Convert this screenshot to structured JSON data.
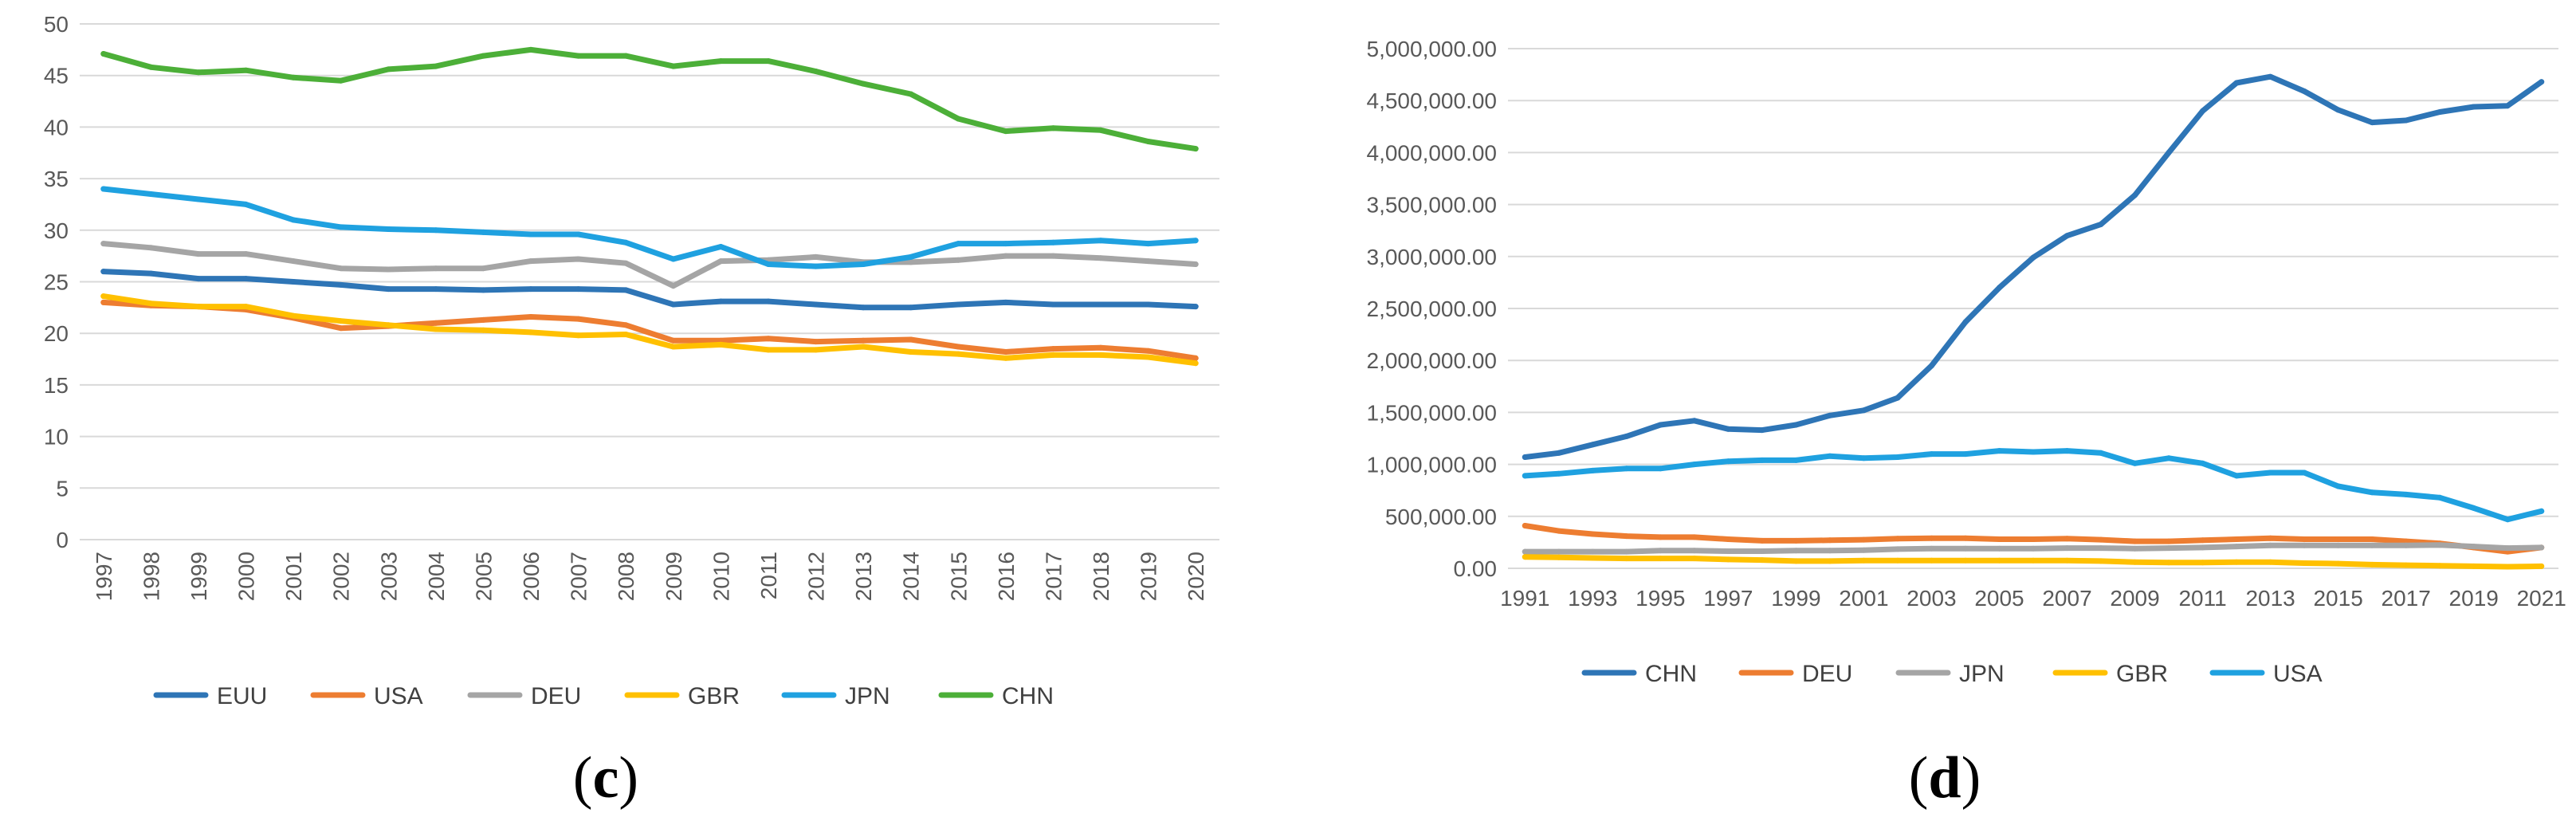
{
  "panels": [
    {
      "label_open": "(",
      "label_letter": "c",
      "label_close": ")",
      "chart_data": {
        "type": "line",
        "title": "",
        "xlabel": "",
        "ylabel": "",
        "ylim": [
          0,
          50
        ],
        "yticks": [
          0,
          5,
          10,
          15,
          20,
          25,
          30,
          35,
          40,
          45,
          50
        ],
        "ytick_labels": [
          "0",
          "5",
          "10",
          "15",
          "20",
          "25",
          "30",
          "35",
          "40",
          "45",
          "50"
        ],
        "grid": true,
        "legend_position": "bottom",
        "x": [
          "1997",
          "1998",
          "1999",
          "2000",
          "2001",
          "2002",
          "2003",
          "2004",
          "2005",
          "2006",
          "2007",
          "2008",
          "2009",
          "2010",
          "2011",
          "2012",
          "2013",
          "2014",
          "2015",
          "2016",
          "2017",
          "2018",
          "2019",
          "2020"
        ],
        "series": [
          {
            "name": "EUU",
            "color": "#2E75B6",
            "values": [
              26.0,
              25.8,
              25.3,
              25.3,
              25.0,
              24.7,
              24.3,
              24.3,
              24.2,
              24.3,
              24.3,
              24.2,
              22.8,
              23.1,
              23.1,
              22.8,
              22.5,
              22.5,
              22.8,
              23.0,
              22.8,
              22.8,
              22.8,
              22.6
            ]
          },
          {
            "name": "USA",
            "color": "#ED7D31",
            "values": [
              23.0,
              22.7,
              22.6,
              22.3,
              21.5,
              20.5,
              20.7,
              21.0,
              21.3,
              21.6,
              21.4,
              20.8,
              19.3,
              19.3,
              19.5,
              19.2,
              19.3,
              19.4,
              18.7,
              18.2,
              18.5,
              18.6,
              18.3,
              17.6
            ]
          },
          {
            "name": "DEU",
            "color": "#A5A5A5",
            "values": [
              28.7,
              28.3,
              27.7,
              27.7,
              27.0,
              26.3,
              26.2,
              26.3,
              26.3,
              27.0,
              27.2,
              26.8,
              24.6,
              27.0,
              27.1,
              27.4,
              26.9,
              26.9,
              27.1,
              27.5,
              27.5,
              27.3,
              27.0,
              26.7
            ]
          },
          {
            "name": "GBR",
            "color": "#FFC000",
            "values": [
              23.6,
              22.9,
              22.6,
              22.6,
              21.7,
              21.2,
              20.8,
              20.4,
              20.3,
              20.1,
              19.8,
              19.9,
              18.7,
              18.9,
              18.4,
              18.4,
              18.7,
              18.2,
              18.0,
              17.6,
              17.9,
              17.9,
              17.7,
              17.1
            ]
          },
          {
            "name": "JPN",
            "color": "#1FA1E0",
            "values": [
              34.0,
              33.5,
              33.0,
              32.5,
              31.0,
              30.3,
              30.1,
              30.0,
              29.8,
              29.6,
              29.6,
              28.8,
              27.2,
              28.4,
              26.7,
              26.5,
              26.7,
              27.4,
              28.7,
              28.7,
              28.8,
              29.0,
              28.7,
              29.0
            ]
          },
          {
            "name": "CHN",
            "color": "#4CAF38",
            "values": [
              47.1,
              45.8,
              45.3,
              45.5,
              44.8,
              44.5,
              45.6,
              45.9,
              46.9,
              47.5,
              46.9,
              46.9,
              45.9,
              46.4,
              46.4,
              45.4,
              44.2,
              43.2,
              40.8,
              39.6,
              39.9,
              39.7,
              38.6,
              37.9
            ]
          }
        ]
      }
    },
    {
      "label_open": "(",
      "label_letter": "d",
      "label_close": ")",
      "chart_data": {
        "type": "line",
        "title": "",
        "xlabel": "",
        "ylabel": "",
        "ylim": [
          0,
          5000000
        ],
        "yticks": [
          0,
          500000,
          1000000,
          1500000,
          2000000,
          2500000,
          3000000,
          3500000,
          4000000,
          4500000,
          5000000
        ],
        "ytick_labels": [
          "0.00",
          "500,000.00",
          "1,000,000.00",
          "1,500,000.00",
          "2,000,000.00",
          "2,500,000.00",
          "3,000,000.00",
          "3,500,000.00",
          "4,000,000.00",
          "4,500,000.00",
          "5,000,000.00"
        ],
        "xtick_labels": [
          "1991",
          "1993",
          "1995",
          "1997",
          "1999",
          "2001",
          "2003",
          "2005",
          "2007",
          "2009",
          "2011",
          "2013",
          "2015",
          "2017",
          "2019",
          "2021"
        ],
        "grid": true,
        "legend_position": "bottom",
        "x": [
          "1991",
          "1992",
          "1993",
          "1994",
          "1995",
          "1996",
          "1997",
          "1998",
          "1999",
          "2000",
          "2001",
          "2002",
          "2003",
          "2004",
          "2005",
          "2006",
          "2007",
          "2008",
          "2009",
          "2010",
          "2011",
          "2012",
          "2013",
          "2014",
          "2015",
          "2016",
          "2017",
          "2018",
          "2019",
          "2020",
          "2021"
        ],
        "series": [
          {
            "name": "CHN",
            "color": "#2E75B6",
            "values": [
              1070000,
              1110000,
              1190000,
              1270000,
              1380000,
              1420000,
              1340000,
              1330000,
              1380000,
              1470000,
              1520000,
              1640000,
              1950000,
              2370000,
              2700000,
              2990000,
              3200000,
              3310000,
              3590000,
              4000000,
              4400000,
              4670000,
              4730000,
              4590000,
              4410000,
              4290000,
              4310000,
              4390000,
              4440000,
              4450000,
              4680000
            ]
          },
          {
            "name": "DEU",
            "color": "#ED7D31",
            "values": [
              410000,
              360000,
              330000,
              310000,
              300000,
              300000,
              280000,
              265000,
              265000,
              270000,
              275000,
              285000,
              290000,
              290000,
              280000,
              280000,
              285000,
              275000,
              260000,
              260000,
              270000,
              280000,
              290000,
              280000,
              280000,
              280000,
              260000,
              240000,
              200000,
              160000,
              200000
            ]
          },
          {
            "name": "JPN",
            "color": "#A5A5A5",
            "values": [
              160000,
              160000,
              160000,
              160000,
              170000,
              170000,
              165000,
              165000,
              170000,
              170000,
              175000,
              185000,
              190000,
              190000,
              190000,
              190000,
              195000,
              195000,
              190000,
              195000,
              200000,
              210000,
              220000,
              220000,
              220000,
              220000,
              220000,
              225000,
              210000,
              195000,
              200000
            ]
          },
          {
            "name": "GBR",
            "color": "#FFC000",
            "values": [
              110000,
              105000,
              100000,
              95000,
              95000,
              95000,
              85000,
              80000,
              70000,
              70000,
              75000,
              75000,
              75000,
              75000,
              75000,
              75000,
              75000,
              70000,
              60000,
              55000,
              55000,
              60000,
              60000,
              50000,
              45000,
              35000,
              30000,
              25000,
              20000,
              15000,
              20000
            ]
          },
          {
            "name": "USA",
            "color": "#1FA1E0",
            "values": [
              890000,
              910000,
              940000,
              960000,
              960000,
              1000000,
              1030000,
              1040000,
              1040000,
              1080000,
              1060000,
              1070000,
              1100000,
              1100000,
              1130000,
              1120000,
              1130000,
              1110000,
              1010000,
              1060000,
              1010000,
              890000,
              920000,
              920000,
              790000,
              730000,
              710000,
              680000,
              580000,
              470000,
              550000
            ]
          }
        ]
      }
    }
  ]
}
